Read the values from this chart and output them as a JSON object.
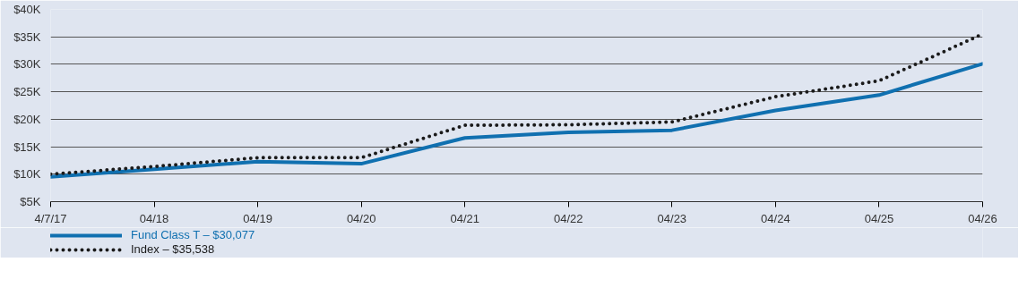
{
  "chart_data": {
    "type": "line",
    "categories": [
      "4/7/17",
      "04/18",
      "04/19",
      "04/20",
      "04/21",
      "04/22",
      "04/23",
      "04/24",
      "04/25",
      "04/26"
    ],
    "series": [
      {
        "name": "Fund Class T – $30,077",
        "color": "#1070b0",
        "line_style": "solid",
        "values": [
          9500,
          10900,
          12300,
          11900,
          16600,
          17600,
          18000,
          21600,
          24400,
          30100
        ]
      },
      {
        "name": "Index – $35,538",
        "color": "#1a1a1a",
        "line_style": "dotted",
        "values": [
          10000,
          11400,
          13000,
          13000,
          18900,
          19000,
          19500,
          24100,
          27000,
          35500
        ]
      }
    ],
    "ylim": [
      5000,
      40000
    ],
    "yticks": [
      {
        "value": 5000,
        "label": "$5K"
      },
      {
        "value": 10000,
        "label": "$10K"
      },
      {
        "value": 15000,
        "label": "$15K"
      },
      {
        "value": 20000,
        "label": "$20K"
      },
      {
        "value": 25000,
        "label": "$25K"
      },
      {
        "value": 30000,
        "label": "$30K"
      },
      {
        "value": 35000,
        "label": "$35K"
      },
      {
        "value": 40000,
        "label": "$40K"
      }
    ],
    "grid": "y",
    "legend": "bottom"
  }
}
